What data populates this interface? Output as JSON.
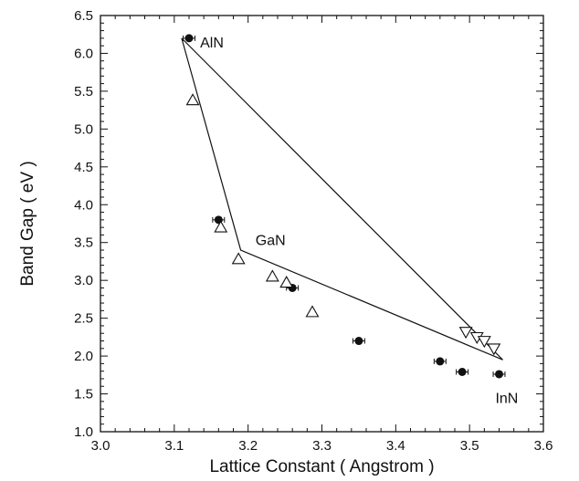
{
  "chart_data": {
    "type": "scatter",
    "title": "",
    "xlabel": "Lattice Constant ( Angstrom )",
    "ylabel": "Band Gap ( eV )",
    "xlim": [
      3.0,
      3.6
    ],
    "ylim": [
      1.0,
      6.5
    ],
    "x_ticks": [
      "3.0",
      "3.1",
      "3.2",
      "3.3",
      "3.4",
      "3.5",
      "3.6"
    ],
    "y_ticks": [
      "1.0",
      "1.5",
      "2.0",
      "2.5",
      "3.0",
      "3.5",
      "4.0",
      "4.5",
      "5.0",
      "5.5",
      "6.0",
      "6.5"
    ],
    "grid": false,
    "series": [
      {
        "marker": "filled-circle-with-xerror",
        "x": [
          3.12,
          3.16,
          3.26,
          3.35,
          3.46,
          3.49,
          3.54
        ],
        "y": [
          6.2,
          3.8,
          2.9,
          2.2,
          1.93,
          1.79,
          1.76
        ],
        "x_error": 0.008
      },
      {
        "marker": "open-triangle-up",
        "x": [
          3.125,
          3.163,
          3.187,
          3.233,
          3.252,
          3.287
        ],
        "y": [
          5.38,
          3.7,
          3.28,
          3.05,
          2.97,
          2.58
        ]
      },
      {
        "marker": "open-triangle-down",
        "x": [
          3.495,
          3.51,
          3.52,
          3.533
        ],
        "y": [
          2.32,
          2.25,
          2.2,
          2.1
        ]
      }
    ],
    "triangle_outline": {
      "x": [
        3.11,
        3.19,
        3.545,
        3.11
      ],
      "y": [
        6.2,
        3.4,
        1.95,
        6.2
      ]
    },
    "annotations": [
      {
        "text": "AlN",
        "x": 3.135,
        "y": 6.15
      },
      {
        "text": "GaN",
        "x": 3.21,
        "y": 3.54
      },
      {
        "text": "InN",
        "x": 3.535,
        "y": 1.45
      }
    ]
  }
}
